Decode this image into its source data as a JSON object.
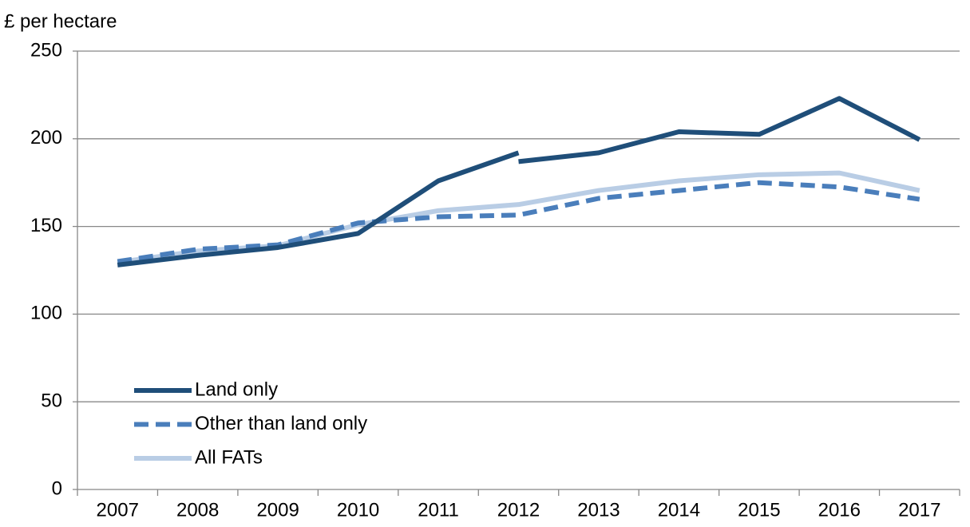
{
  "chart_data": {
    "type": "line",
    "ylabel": "£ per hectare",
    "xlim": [
      2006.5,
      2017.5
    ],
    "xticks": [
      2007,
      2008,
      2009,
      2010,
      2011,
      2012,
      2013,
      2014,
      2015,
      2016,
      2017
    ],
    "ylim": [
      0,
      250
    ],
    "yticks": [
      0,
      50,
      100,
      150,
      200,
      250
    ],
    "grid": true,
    "legend": "lower left",
    "series": [
      {
        "name": "Land only",
        "color": "#1f4e79",
        "dash": false,
        "x": [
          2007,
          2008,
          2009,
          2010,
          2011,
          2012,
          2012,
          2012,
          2013,
          2014,
          2015,
          2016,
          2017
        ],
        "values": [
          128,
          133.5,
          138,
          146,
          176,
          192,
          null,
          187,
          192,
          204,
          202.5,
          223,
          199.5
        ]
      },
      {
        "name": "Other than land only",
        "color": "#4a7ebb",
        "dash": true,
        "x": [
          2007,
          2008,
          2009,
          2010,
          2011,
          2012,
          2013,
          2014,
          2015,
          2016,
          2017
        ],
        "values": [
          130,
          137,
          139.5,
          152,
          155.5,
          156.5,
          166,
          170.5,
          175,
          172.5,
          165.5
        ]
      },
      {
        "name": "All FATs",
        "color": "#b9cde5",
        "dash": false,
        "x": [
          2007,
          2008,
          2009,
          2010,
          2011,
          2012,
          2013,
          2014,
          2015,
          2016,
          2017
        ],
        "values": [
          129.5,
          136,
          139,
          151,
          159,
          162.5,
          170.5,
          176,
          179.5,
          180.5,
          170.5
        ]
      }
    ]
  }
}
